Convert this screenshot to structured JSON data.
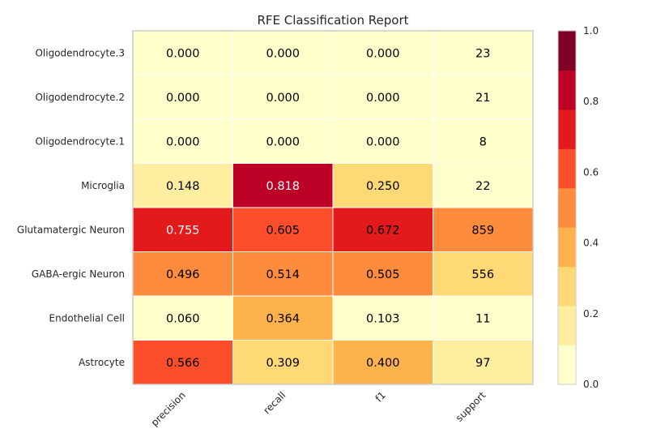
{
  "chart_data": {
    "type": "heatmap",
    "title": "RFE Classification Report",
    "rows": [
      "Oligodendrocyte.3",
      "Oligodendrocyte.2",
      "Oligodendrocyte.1",
      "Microglia",
      "Glutamatergic Neuron",
      "GABA-ergic Neuron",
      "Endothelial Cell",
      "Astrocyte"
    ],
    "columns": [
      "precision",
      "recall",
      "f1",
      "support"
    ],
    "values": [
      [
        0.0,
        0.0,
        0.0,
        23
      ],
      [
        0.0,
        0.0,
        0.0,
        21
      ],
      [
        0.0,
        0.0,
        0.0,
        8
      ],
      [
        0.148,
        0.818,
        0.25,
        22
      ],
      [
        0.755,
        0.605,
        0.672,
        859
      ],
      [
        0.496,
        0.514,
        0.505,
        556
      ],
      [
        0.06,
        0.364,
        0.103,
        11
      ],
      [
        0.566,
        0.309,
        0.4,
        97
      ]
    ],
    "support_fill_fraction": [
      0.027,
      0.024,
      0.009,
      0.026,
      0.5,
      0.324,
      0.013,
      0.113
    ],
    "colorbar": {
      "range": [
        0.0,
        1.0
      ],
      "ticks": [
        "0.0",
        "0.2",
        "0.4",
        "0.6",
        "0.8",
        "1.0"
      ],
      "colors": [
        "#ffffcc",
        "#ffeda0",
        "#fed976",
        "#feb24c",
        "#fd8d3c",
        "#fc4e2a",
        "#e31a1c",
        "#bd0026",
        "#800026"
      ]
    }
  }
}
